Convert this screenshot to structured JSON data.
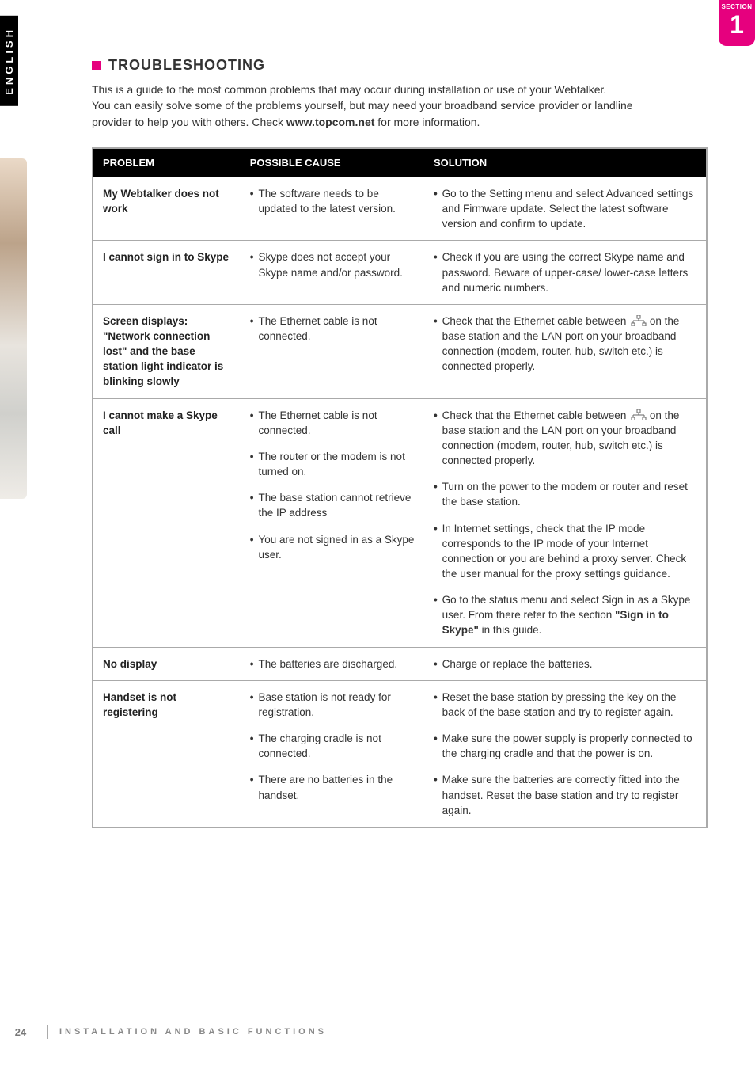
{
  "section": {
    "label": "SECTION",
    "number": "1"
  },
  "side_tab": "ENGLISH",
  "heading": "TROUBLESHOOTING",
  "intro_lines": [
    "This is a guide to the most common problems that may occur during installation or use of your Webtalker.",
    "You can easily solve some of the problems yourself, but may need your broadband service provider or landline",
    "provider to help you with others. Check "
  ],
  "intro_bold": "www.topcom.net",
  "intro_tail": " for more information.",
  "table": {
    "headers": {
      "problem": "PROBLEM",
      "cause": "POSSIBLE CAUSE",
      "solution": "SOLUTION"
    },
    "rows": [
      {
        "problem": "My Webtalker does not work",
        "pairs": [
          {
            "cause": "The software needs to be updated to the latest version.",
            "solution": "Go to the Setting menu and select Advanced settings and Firmware update. Select the latest software version and confirm to update."
          }
        ]
      },
      {
        "problem": "I cannot sign in to Skype",
        "pairs": [
          {
            "cause": "Skype does not accept your Skype name and/or password.",
            "solution": "Check if you are using the correct Skype name and password. Beware of upper-case/ lower-case letters and numeric numbers."
          }
        ]
      },
      {
        "problem": "Screen displays: \"Network connection lost\" and the base station light indicator is blinking slowly",
        "pairs": [
          {
            "cause": "The Ethernet cable is not connected.",
            "solution_pre": "Check that the Ethernet cable between ",
            "eth_icon": true,
            "solution_post": " on the base station and the LAN port on your broadband connection (modem, router, hub, switch etc.) is connected properly."
          }
        ]
      },
      {
        "problem": "I cannot make a Skype call",
        "pairs": [
          {
            "cause": "The Ethernet cable is not connected.",
            "solution_pre": "Check that the Ethernet cable between ",
            "eth_icon": true,
            "solution_post": " on the base station and the LAN port on your broadband connection (modem, router, hub, switch etc.) is connected properly."
          },
          {
            "cause": "The router or the modem is not turned on.",
            "solution": "Turn on the power to the modem or router and reset the base station."
          },
          {
            "cause": "The base station cannot retrieve the IP address",
            "solution": "In Internet settings, check that the IP mode corresponds to the IP mode of your Internet connection or you are behind  a proxy server. Check the user manual for the proxy settings guidance."
          },
          {
            "cause": "You are not signed in as a Skype user.",
            "solution_pre": "Go to the status menu and select Sign in as a Skype user. From there refer to the section ",
            "bold": "\"Sign in to Skype\"",
            "solution_post": " in this guide."
          }
        ]
      },
      {
        "problem": "No display",
        "pairs": [
          {
            "cause": "The batteries are discharged.",
            "solution": "Charge or replace the batteries."
          }
        ]
      },
      {
        "problem": "Handset is not registering",
        "pairs": [
          {
            "cause": "Base station is not ready for registration.",
            "solution": "Reset the base station by pressing the key on the back of the base station and try to register again."
          },
          {
            "cause": "The charging cradle is not connected.",
            "solution": "Make sure the power supply is properly connected to the charging cradle and that the power is on."
          },
          {
            "cause": "There are no batteries in the handset.",
            "solution": "Make sure the batteries are correctly fitted into the handset. Reset the base station and try to register again."
          }
        ]
      }
    ]
  },
  "footer": {
    "page": "24",
    "text": "INSTALLATION AND BASIC FUNCTIONS"
  },
  "colors": {
    "accent": "#e6007e",
    "border": "#aaaaaa"
  }
}
